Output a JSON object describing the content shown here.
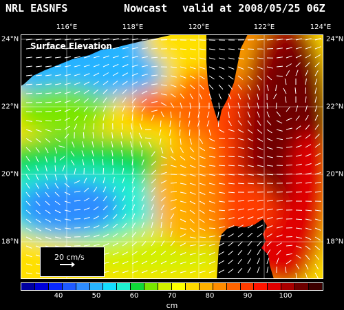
{
  "header": {
    "left": "NRL EASNFS",
    "middle": "Nowcast",
    "right": "valid at 2008/05/25 06Z"
  },
  "map": {
    "title": "Surface Elevation",
    "lon_ticks": [
      "116°E",
      "118°E",
      "120°E",
      "122°E",
      "124°E"
    ],
    "lat_ticks": [
      "24°N",
      "22°N",
      "20°N",
      "18°N"
    ],
    "lon_range": [
      114.8,
      124.0
    ],
    "lat_range": [
      17.0,
      24.0
    ]
  },
  "scale": {
    "label": "20 cm/s"
  },
  "colorbar": {
    "unit": "cm",
    "tick_labels": [
      "40",
      "50",
      "60",
      "70",
      "80",
      "90",
      "100"
    ],
    "tick_values": [
      40,
      50,
      60,
      70,
      80,
      90,
      100
    ],
    "range": [
      30,
      110
    ],
    "colors": [
      "#0000a0",
      "#0000d8",
      "#0828ff",
      "#1e5aff",
      "#2e8cff",
      "#28b4ff",
      "#14dcff",
      "#20f0d0",
      "#10d838",
      "#78e600",
      "#d2f000",
      "#ffff00",
      "#ffd800",
      "#ffb000",
      "#ff8c00",
      "#ff6400",
      "#ff3c00",
      "#ff1400",
      "#e00000",
      "#a80000",
      "#6e0000",
      "#3c0000"
    ]
  },
  "colors": {
    "land": "#000000",
    "vectors": "#ffffff",
    "text": "#ffffff"
  }
}
